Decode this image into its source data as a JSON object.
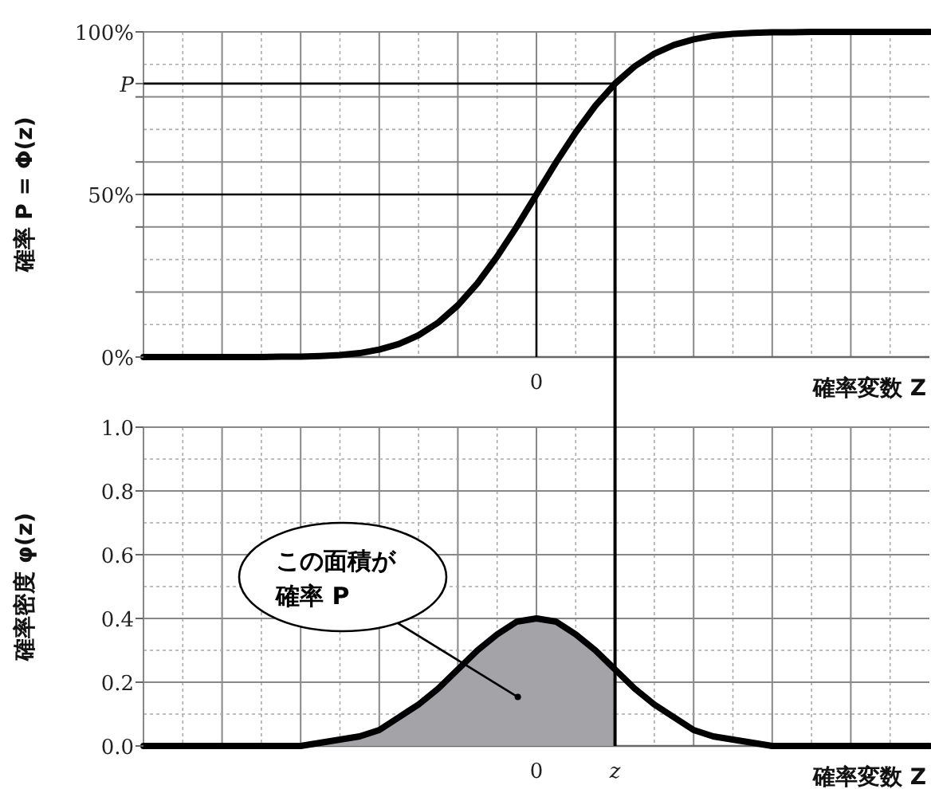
{
  "chart_data": [
    {
      "type": "line",
      "ylabel": "確率 P = Φ(z)",
      "xlabel": "確率変数 Z",
      "categories": [
        null,
        null,
        null,
        null,
        null,
        null,
        null,
        null,
        null,
        null,
        null,
        null,
        null,
        null,
        null,
        null,
        null,
        null,
        null,
        null,
        "0",
        null,
        null,
        null,
        null,
        null,
        null,
        null,
        null,
        null,
        null,
        null,
        null,
        null,
        null,
        null,
        null,
        null,
        null,
        null,
        null
      ],
      "ylim": [
        0,
        100
      ],
      "yticks": [
        {
          "value": 0,
          "label": "0%"
        },
        {
          "value": 20,
          "label": null
        },
        {
          "value": 40,
          "label": null
        },
        {
          "value": 50,
          "label": "50%"
        },
        {
          "value": 60,
          "label": null
        },
        {
          "value": 80,
          "label": null
        },
        {
          "value": 84.1,
          "label": "P"
        },
        {
          "value": 100,
          "label": "100%"
        }
      ],
      "grid": true,
      "series": [
        {
          "color": "#000000",
          "values": [
            0,
            0,
            0,
            0,
            0,
            0,
            0,
            0.1,
            0.1,
            0.3,
            0.6,
            1.2,
            2.3,
            4.0,
            6.7,
            10.6,
            15.9,
            22.7,
            30.9,
            40.1,
            50,
            59.9,
            69.1,
            77.3,
            84.1,
            89.4,
            93.3,
            96.0,
            97.7,
            98.8,
            99.4,
            99.7,
            99.9,
            99.9,
            100,
            100,
            100,
            100,
            100,
            100,
            100
          ]
        }
      ],
      "ref_lines": [
        {
          "axis": "y",
          "value": 84.1,
          "color": "#000000"
        },
        {
          "axis": "y",
          "value": 50,
          "color": "#000000"
        },
        {
          "axis": "x",
          "value": "0",
          "color": "#000000"
        }
      ]
    },
    {
      "type": "line",
      "ylabel": "確率密度  φ(z)",
      "xlabel": "確率変数 Z",
      "categories": [
        null,
        null,
        null,
        null,
        null,
        null,
        null,
        null,
        null,
        null,
        null,
        null,
        null,
        null,
        null,
        null,
        null,
        null,
        null,
        null,
        "0",
        null,
        null,
        null,
        "z",
        null,
        null,
        null,
        null,
        null,
        null,
        null,
        null,
        null,
        null,
        null,
        null,
        null,
        null,
        null,
        null
      ],
      "ylim": [
        0,
        1
      ],
      "yticks": [
        {
          "value": 0,
          "label": "0.0"
        },
        {
          "value": 0.2,
          "label": "0.2"
        },
        {
          "value": 0.4,
          "label": "0.4"
        },
        {
          "value": 0.6,
          "label": "0.6"
        },
        {
          "value": 0.8,
          "label": "0.8"
        },
        {
          "value": 1,
          "label": "1.0"
        }
      ],
      "grid": true,
      "series": [
        {
          "type": "area",
          "color": "#a3a3a8",
          "values": [
            0,
            0,
            0,
            0,
            0,
            0,
            0,
            0,
            0,
            0.01,
            0.02,
            0.03,
            0.05,
            0.09,
            0.13,
            0.18,
            0.24,
            0.3,
            0.35,
            0.39,
            0.4,
            0.39,
            0.35,
            0.3,
            0.24,
            null,
            null,
            null,
            null,
            null,
            null,
            null,
            null,
            null,
            null,
            null,
            null,
            null,
            null,
            null,
            null
          ]
        },
        {
          "color": "#000000",
          "values": [
            0,
            0,
            0,
            0,
            0,
            0,
            0,
            0,
            0,
            0.01,
            0.02,
            0.03,
            0.05,
            0.09,
            0.13,
            0.18,
            0.24,
            0.3,
            0.35,
            0.39,
            0.4,
            0.39,
            0.35,
            0.3,
            0.24,
            0.18,
            0.13,
            0.09,
            0.05,
            0.03,
            0.02,
            0.01,
            0,
            0,
            0,
            0,
            0,
            0,
            0,
            0,
            0
          ]
        }
      ],
      "ref_lines": [
        {
          "axis": "x",
          "value": "z",
          "color": "#000000"
        }
      ],
      "annotations": [
        "この面積が確率 P"
      ]
    }
  ]
}
